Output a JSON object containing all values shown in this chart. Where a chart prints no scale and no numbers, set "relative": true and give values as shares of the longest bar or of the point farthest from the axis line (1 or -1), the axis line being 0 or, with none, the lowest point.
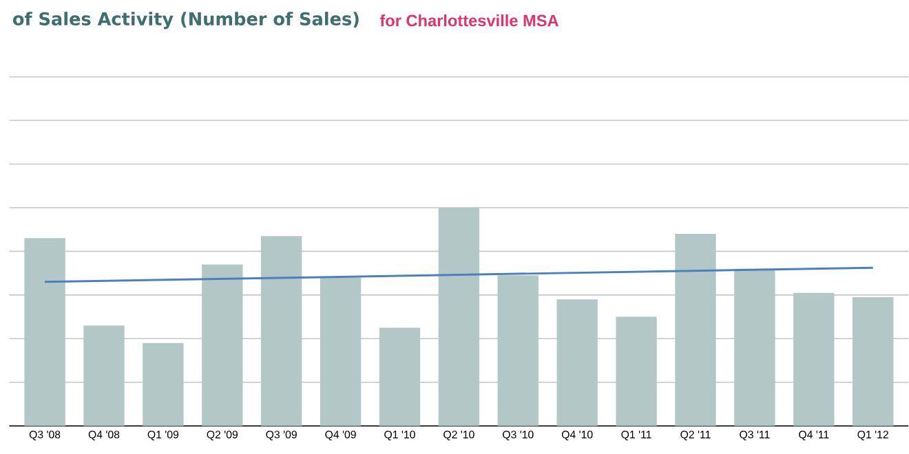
{
  "chart_data": {
    "type": "bar",
    "title": "of Sales Activity (Number of Sales)",
    "subtitle": "for Charlottesville MSA",
    "categories": [
      "Q3 '08",
      "Q4 '08",
      "Q1 '09",
      "Q2 '09",
      "Q3 '09",
      "Q4 '09",
      "Q1 '10",
      "Q2 '10",
      "Q3 '10",
      "Q4 '10",
      "Q1 '11",
      "Q2 '11",
      "Q3 '11",
      "Q4 '11",
      "Q1 '12"
    ],
    "relative": true,
    "grid": "y",
    "series": [
      {
        "color": "#b3c7c6",
        "values": [
          0.86,
          0.46,
          0.38,
          0.74,
          0.87,
          0.68,
          0.45,
          1,
          0.69,
          0.58,
          0.5,
          0.88,
          0.72,
          0.61,
          0.59
        ]
      },
      {
        "type": "line",
        "color": "#4a7fc0",
        "values": [
          0.66,
          null,
          null,
          null,
          null,
          null,
          null,
          null,
          null,
          null,
          null,
          null,
          null,
          null,
          0.725
        ]
      }
    ]
  }
}
